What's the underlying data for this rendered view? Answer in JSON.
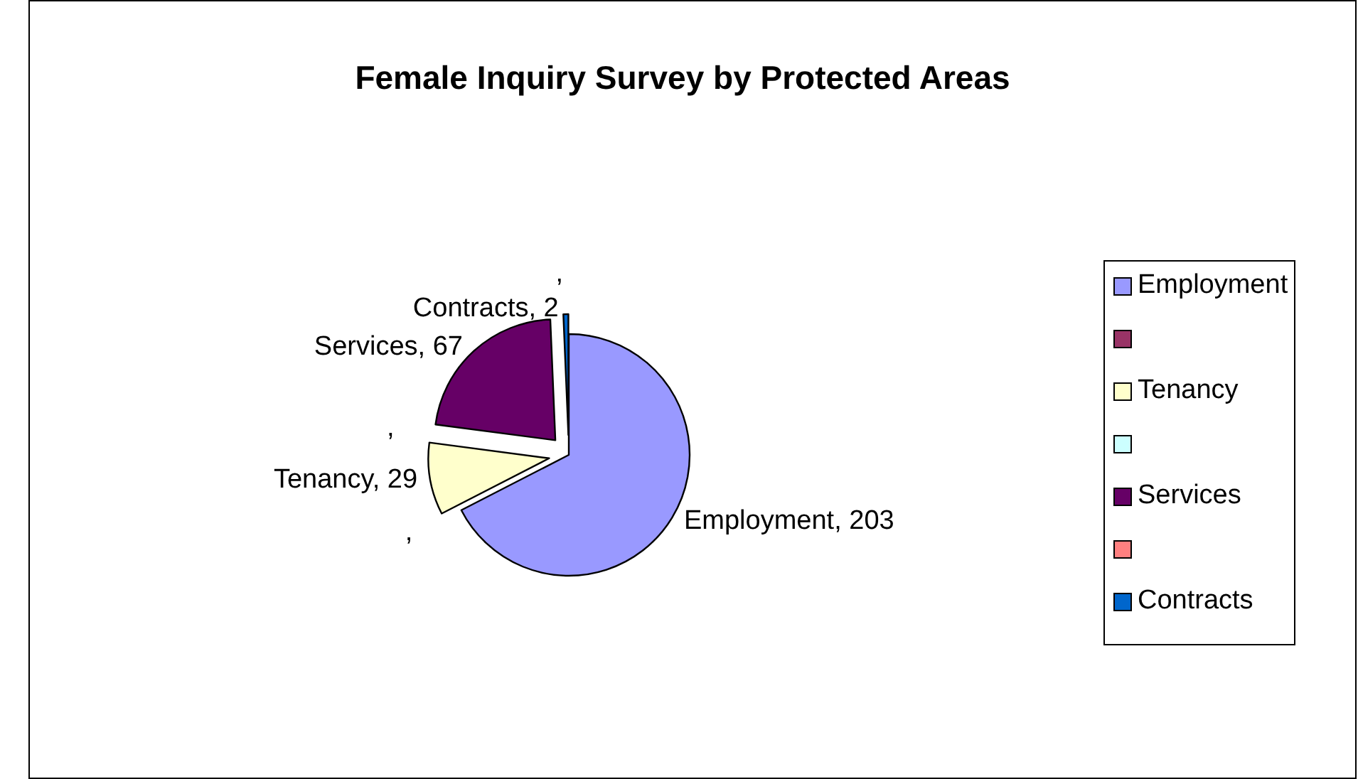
{
  "chart_data": {
    "type": "pie",
    "title": "Female Inquiry Survey by Protected Areas",
    "categories": [
      "Employment",
      null,
      "Tenancy",
      null,
      "Services",
      null,
      "Contracts"
    ],
    "values": [
      203,
      null,
      29,
      null,
      67,
      null,
      2
    ],
    "colors": [
      "#9999ff",
      "#993366",
      "#ffffcc",
      "#ccffff",
      "#660066",
      "#ff8080",
      "#0066cc"
    ],
    "value_labels": [
      "Employment, 203",
      ",",
      "Tenancy, 29",
      ",",
      "Services, 67",
      ",",
      "Contracts, 2"
    ],
    "legend": "right"
  }
}
